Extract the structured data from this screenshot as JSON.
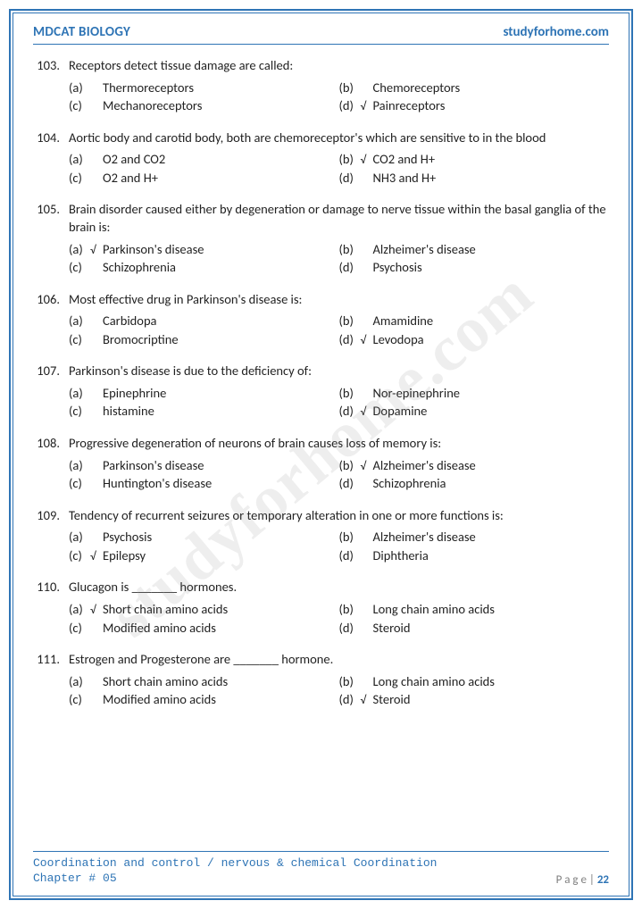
{
  "header": {
    "left": "MDCAT BIOLOGY",
    "right": "studyforhome.com"
  },
  "watermark": "studyforhome.com",
  "footer": {
    "line1": "Coordination and control / nervous & chemical Coordination",
    "line2": "Chapter # 05",
    "page_label": "P a g e  | ",
    "page_num": "22"
  },
  "colors": {
    "accent": "#2e74b5",
    "text": "#222222",
    "footer_gray": "#7f7f7f",
    "watermark": "rgba(120,120,120,0.13)"
  },
  "check_symbol": "√",
  "questions": [
    {
      "num": "103.",
      "text": "Receptors detect tissue damage are called:",
      "options": [
        {
          "letter": "(a)",
          "text": "Thermoreceptors",
          "correct": false
        },
        {
          "letter": "(b)",
          "text": "Chemoreceptors",
          "correct": false
        },
        {
          "letter": "(c)",
          "text": "Mechanoreceptors",
          "correct": false
        },
        {
          "letter": "(d)",
          "text": "Painreceptors",
          "correct": true
        }
      ]
    },
    {
      "num": "104.",
      "text": "Aortic body and carotid body, both are chemoreceptor's which are sensitive to in the blood",
      "options": [
        {
          "letter": "(a)",
          "text": "O2 and CO2",
          "correct": false
        },
        {
          "letter": "(b)",
          "text": "CO2 and H+",
          "correct": true
        },
        {
          "letter": "(c)",
          "text": "O2 and H+",
          "correct": false
        },
        {
          "letter": "(d)",
          "text": "NH3 and H+",
          "correct": false
        }
      ]
    },
    {
      "num": "105.",
      "text": "Brain disorder caused either by degeneration or damage to nerve tissue within the basal ganglia of the brain is:",
      "options": [
        {
          "letter": "(a)",
          "text": "Parkinson's disease",
          "correct": true
        },
        {
          "letter": "(b)",
          "text": "Alzheimer's disease",
          "correct": false
        },
        {
          "letter": "(c)",
          "text": "Schizophrenia",
          "correct": false
        },
        {
          "letter": "(d)",
          "text": "Psychosis",
          "correct": false
        }
      ]
    },
    {
      "num": "106.",
      "text": "Most effective drug in Parkinson's disease is:",
      "options": [
        {
          "letter": "(a)",
          "text": "Carbidopa",
          "correct": false
        },
        {
          "letter": "(b)",
          "text": "Amamidine",
          "correct": false
        },
        {
          "letter": "(c)",
          "text": "Bromocriptine",
          "correct": false
        },
        {
          "letter": "(d)",
          "text": "Levodopa",
          "correct": true
        }
      ]
    },
    {
      "num": "107.",
      "text": "Parkinson's disease is due to the deficiency of:",
      "options": [
        {
          "letter": "(a)",
          "text": "Epinephrine",
          "correct": false
        },
        {
          "letter": "(b)",
          "text": "Nor-epinephrine",
          "correct": false
        },
        {
          "letter": "(c)",
          "text": "histamine",
          "correct": false
        },
        {
          "letter": "(d)",
          "text": "Dopamine",
          "correct": true
        }
      ]
    },
    {
      "num": "108.",
      "text": "Progressive degeneration of neurons of brain causes loss of memory is:",
      "options": [
        {
          "letter": "(a)",
          "text": "Parkinson's disease",
          "correct": false
        },
        {
          "letter": "(b)",
          "text": "Alzheimer's disease",
          "correct": true
        },
        {
          "letter": "(c)",
          "text": "Huntington's disease",
          "correct": false
        },
        {
          "letter": "(d)",
          "text": "Schizophrenia",
          "correct": false
        }
      ]
    },
    {
      "num": "109.",
      "text": "Tendency of recurrent seizures or temporary alteration in one or more functions is:",
      "options": [
        {
          "letter": "(a)",
          "text": "Psychosis",
          "correct": false
        },
        {
          "letter": "(b)",
          "text": "Alzheimer's disease",
          "correct": false
        },
        {
          "letter": "(c)",
          "text": "Epilepsy",
          "correct": true
        },
        {
          "letter": "(d)",
          "text": "Diphtheria",
          "correct": false
        }
      ]
    },
    {
      "num": "110.",
      "text": "Glucagon is _______ hormones.",
      "options": [
        {
          "letter": "(a)",
          "text": "Short chain amino acids",
          "correct": true
        },
        {
          "letter": "(b)",
          "text": "Long chain amino acids",
          "correct": false
        },
        {
          "letter": "(c)",
          "text": "Modified amino acids",
          "correct": false
        },
        {
          "letter": "(d)",
          "text": "Steroid",
          "correct": false
        }
      ]
    },
    {
      "num": "111.",
      "text": "Estrogen and Progesterone are _______ hormone.",
      "options": [
        {
          "letter": "(a)",
          "text": "Short chain amino acids",
          "correct": false
        },
        {
          "letter": "(b)",
          "text": "Long chain amino acids",
          "correct": false
        },
        {
          "letter": "(c)",
          "text": "Modified amino acids",
          "correct": false
        },
        {
          "letter": "(d)",
          "text": "Steroid",
          "correct": true
        }
      ]
    }
  ]
}
